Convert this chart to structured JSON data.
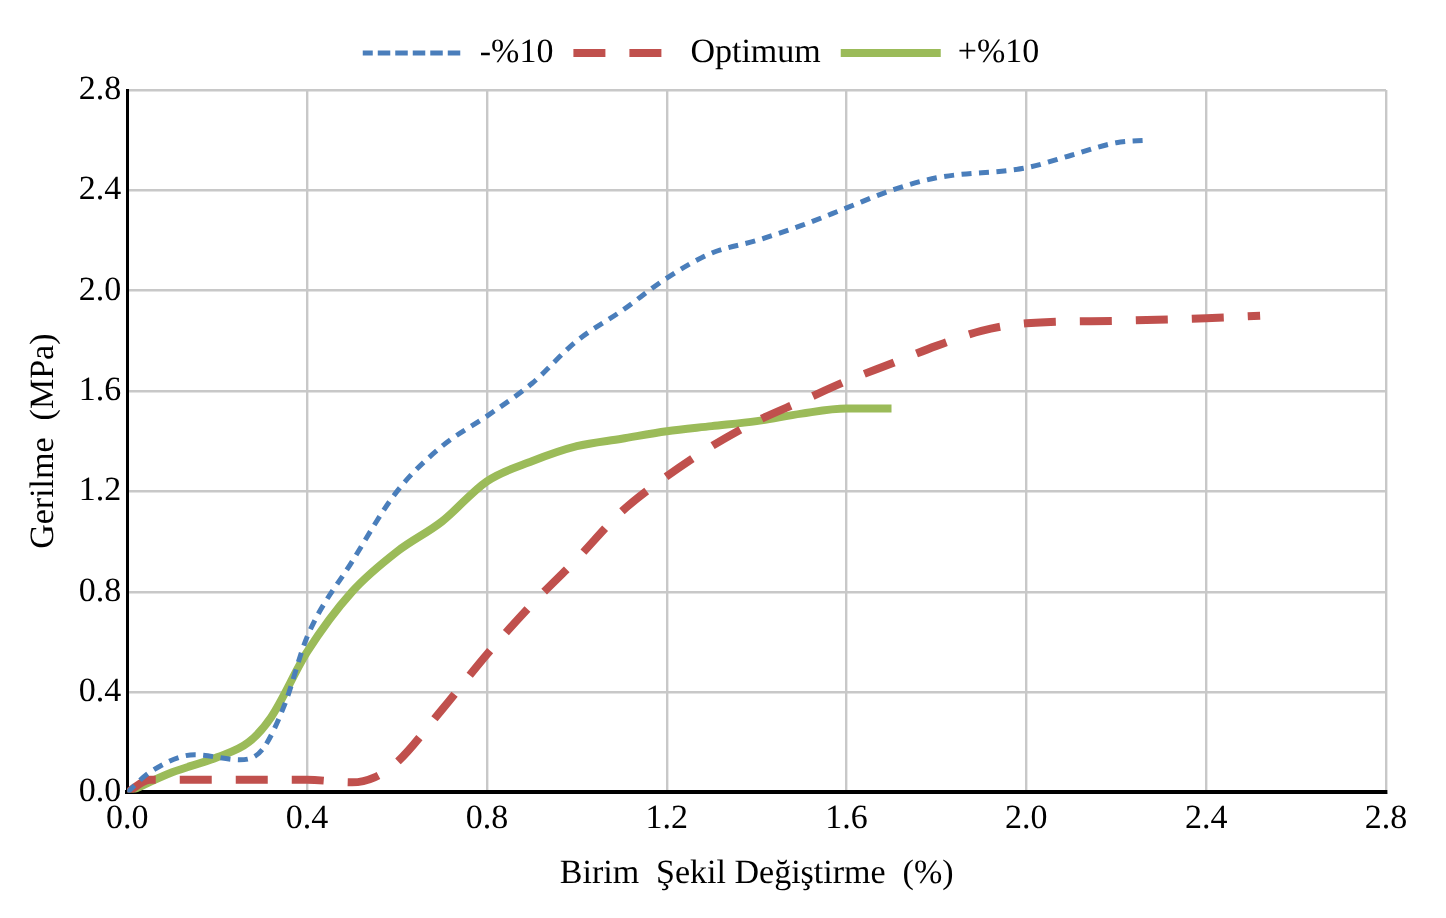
{
  "chart_data": {
    "type": "line",
    "xlabel": "Birim  Şekil Değiştirme  (%)",
    "ylabel": "Gerilme  (MPa)",
    "xlim": [
      0,
      2.8
    ],
    "xticks": [
      {
        "value": 0,
        "label": "0.0"
      },
      {
        "value": 0.4,
        "label": "0.4"
      },
      {
        "value": 0.8,
        "label": "0.8"
      },
      {
        "value": 1.2,
        "label": "1.2"
      },
      {
        "value": 1.6,
        "label": "1.6"
      },
      {
        "value": 2,
        "label": "2.0"
      },
      {
        "value": 2.4,
        "label": "2.4"
      },
      {
        "value": 2.8,
        "label": "2.8"
      }
    ],
    "ylim": [
      0,
      2.8
    ],
    "yticks": [
      {
        "value": 0,
        "label": "0.0"
      },
      {
        "value": 0.4,
        "label": "0.4"
      },
      {
        "value": 0.8,
        "label": "0.8"
      },
      {
        "value": 1.2,
        "label": "1.2"
      },
      {
        "value": 1.6,
        "label": "1.6"
      },
      {
        "value": 2,
        "label": "2.0"
      },
      {
        "value": 2.4,
        "label": "2.4"
      },
      {
        "value": 2.8,
        "label": "2.8"
      }
    ],
    "grid": true,
    "legend": "top",
    "marker": "none",
    "series": [
      {
        "name": "-%10",
        "color": "#4a7ebb",
        "line_style": "dotted",
        "x": [
          0,
          0.05,
          0.15,
          0.25,
          0.3,
          0.35,
          0.4,
          0.5,
          0.6,
          0.7,
          0.8,
          0.9,
          1.0,
          1.1,
          1.2,
          1.3,
          1.4,
          1.5,
          1.6,
          1.7,
          1.8,
          2.0,
          2.1,
          2.2,
          2.27
        ],
        "values": [
          0,
          0.08,
          0.15,
          0.13,
          0.17,
          0.35,
          0.62,
          0.92,
          1.2,
          1.38,
          1.5,
          1.63,
          1.8,
          1.92,
          2.05,
          2.15,
          2.2,
          2.26,
          2.33,
          2.4,
          2.45,
          2.49,
          2.54,
          2.59,
          2.6
        ]
      },
      {
        "name": "Optimum",
        "color": "#c0504d",
        "line_style": "dashed",
        "x": [
          0,
          0.05,
          0.2,
          0.4,
          0.5,
          0.55,
          0.6,
          0.7,
          0.8,
          0.9,
          1.0,
          1.1,
          1.2,
          1.3,
          1.4,
          1.5,
          1.6,
          1.7,
          1.8,
          1.9,
          2.0,
          2.2,
          2.4,
          2.52
        ],
        "values": [
          0,
          0.05,
          0.05,
          0.05,
          0.04,
          0.06,
          0.12,
          0.33,
          0.55,
          0.75,
          0.93,
          1.12,
          1.26,
          1.38,
          1.48,
          1.56,
          1.64,
          1.71,
          1.78,
          1.84,
          1.87,
          1.88,
          1.89,
          1.9
        ]
      },
      {
        "name": "+%10",
        "color": "#9bbb59",
        "line_style": "solid",
        "x": [
          0,
          0.1,
          0.2,
          0.27,
          0.32,
          0.4,
          0.5,
          0.6,
          0.7,
          0.8,
          0.9,
          1.0,
          1.1,
          1.2,
          1.3,
          1.4,
          1.5,
          1.6,
          1.7
        ],
        "values": [
          0,
          0.08,
          0.14,
          0.2,
          0.3,
          0.56,
          0.8,
          0.96,
          1.08,
          1.24,
          1.32,
          1.38,
          1.41,
          1.44,
          1.46,
          1.48,
          1.51,
          1.53,
          1.53
        ]
      }
    ]
  }
}
